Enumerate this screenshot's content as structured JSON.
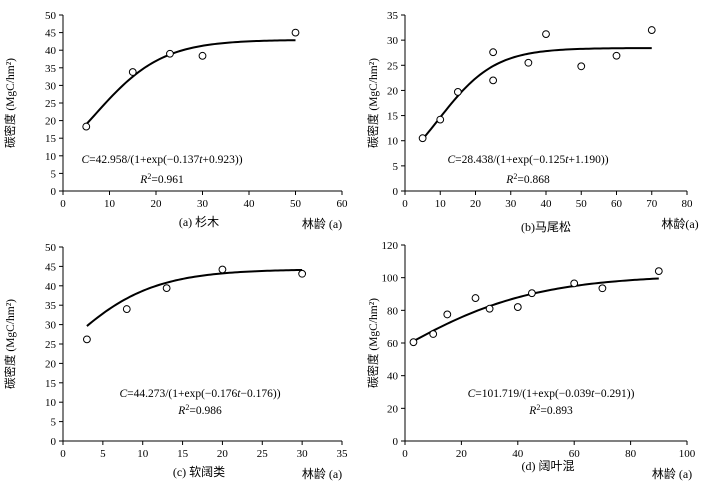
{
  "chart_data": [
    {
      "type": "scatter",
      "caption": "(a) 杉木",
      "ylabel": "碳密度 (MgC/hm²)",
      "xlabel": "林龄 (a)",
      "xlim": [
        0,
        60
      ],
      "ylim": [
        0,
        50
      ],
      "xticks": [
        0,
        10,
        20,
        30,
        40,
        50,
        60
      ],
      "yticks": [
        0,
        5,
        10,
        15,
        20,
        25,
        30,
        35,
        40,
        45,
        50
      ],
      "equation": {
        "a": "C",
        "b": "=42.958/(1+exp(−0.137",
        "c": "t",
        "d": "+0.923))"
      },
      "r2": {
        "a": "R",
        "b": "2",
        "c": "=0.961"
      },
      "fit": {
        "K": 42.958,
        "r": 0.137,
        "c": 0.923
      },
      "series": [
        {
          "x": [
            5,
            15,
            23,
            30,
            50
          ],
          "y": [
            18.3,
            33.8,
            39.0,
            38.4,
            45.0
          ]
        }
      ]
    },
    {
      "type": "scatter",
      "caption": "(b)马尾松",
      "ylabel": "碳密度 (MgC/hm²)",
      "xlabel": "林龄(a)",
      "xlim": [
        0,
        80
      ],
      "ylim": [
        0,
        35
      ],
      "xticks": [
        0,
        10,
        20,
        30,
        40,
        50,
        60,
        70,
        80
      ],
      "yticks": [
        0,
        5,
        10,
        15,
        20,
        25,
        30,
        35
      ],
      "equation": {
        "a": "C",
        "b": "=28.438/(1+exp(−0.125",
        "c": "t",
        "d": "+1.190))"
      },
      "r2": {
        "a": "R",
        "b": "2",
        "c": "=0.868"
      },
      "fit": {
        "K": 28.438,
        "r": 0.125,
        "c": 1.19
      },
      "series": [
        {
          "x": [
            5,
            10,
            15,
            25,
            25,
            35,
            40,
            50,
            60,
            70
          ],
          "y": [
            10.5,
            14.2,
            19.7,
            27.6,
            22.0,
            25.5,
            31.2,
            24.8,
            26.9,
            32.0
          ]
        }
      ]
    },
    {
      "type": "scatter",
      "caption": "(c) 软阔类",
      "ylabel": "碳密度 (MgC/hm²)",
      "xlabel": "林龄  (a)",
      "xlim": [
        0,
        35
      ],
      "ylim": [
        0,
        50
      ],
      "xticks": [
        0,
        5,
        10,
        15,
        20,
        25,
        30,
        35
      ],
      "yticks": [
        0,
        5,
        10,
        15,
        20,
        25,
        30,
        35,
        40,
        45,
        50
      ],
      "equation": {
        "a": "C",
        "b": "=44.273/(1+exp(−0.176",
        "c": "t",
        "d": "−0.176))"
      },
      "r2": {
        "a": "R",
        "b": "2",
        "c": "=0.986"
      },
      "fit": {
        "K": 44.273,
        "r": 0.176,
        "c": -0.176
      },
      "series": [
        {
          "x": [
            3,
            8,
            13,
            20,
            30
          ],
          "y": [
            26.2,
            34.0,
            39.4,
            44.2,
            43.1
          ]
        }
      ]
    },
    {
      "type": "scatter",
      "caption": "(d) 阔叶混",
      "ylabel": "碳密度 (MgC/hm²)",
      "xlabel": "林龄  (a)",
      "xlim": [
        0,
        100
      ],
      "ylim": [
        0,
        120
      ],
      "xticks": [
        0,
        20,
        40,
        60,
        80,
        100
      ],
      "yticks": [
        0,
        20,
        40,
        60,
        80,
        100,
        120
      ],
      "equation": {
        "a": "C",
        "b": "=101.719/(1+exp(−0.039",
        "c": "t",
        "d": "−0.291))"
      },
      "r2": {
        "a": "R",
        "b": "2",
        "c": "=0.893"
      },
      "fit": {
        "K": 101.719,
        "r": 0.039,
        "c": -0.291
      },
      "series": [
        {
          "x": [
            3,
            10,
            15,
            25,
            30,
            40,
            45,
            60,
            70,
            90
          ],
          "y": [
            60.5,
            65.5,
            77.5,
            87.5,
            81.0,
            82.0,
            90.5,
            96.5,
            93.5,
            104.0
          ]
        }
      ]
    }
  ]
}
